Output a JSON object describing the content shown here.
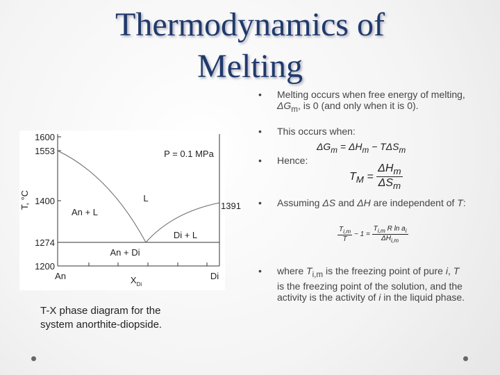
{
  "title": [
    "Thermodynamics of",
    "Melting"
  ],
  "diagram": {
    "y_axis_label": "T, °C",
    "ticks": [
      "1600",
      "1553",
      "1400",
      "1274",
      "1200"
    ],
    "right_label": "1391",
    "pressure": "P = 0.1 MPa",
    "liquid": "L",
    "an_l": "An + L",
    "di_l": "Di + L",
    "an_di": "An + Di",
    "an": "An",
    "x": "X",
    "x_sub": "Di",
    "di": "Di"
  },
  "caption": "T-X phase diagram for the system anorthite-diopside.",
  "bullets": [
    {
      "text": [
        "Melting occurs when free energy of melting, ",
        "ΔG",
        "m",
        ", is 0 (and only when it is 0)."
      ]
    },
    {
      "text": [
        "This occurs when:"
      ],
      "equation": [
        "ΔG",
        "m",
        " = ΔH",
        "m",
        " − TΔS",
        "m"
      ]
    },
    {
      "text": [
        "Hence:"
      ],
      "equation": [
        "T",
        "M",
        "=",
        "ΔH",
        "m",
        "ΔS",
        "m"
      ]
    },
    {
      "text": [
        "Assuming ",
        "ΔS",
        " and ",
        "ΔH",
        " are independent of ",
        "T",
        ":"
      ],
      "equation": [
        "T",
        "i,m",
        "T",
        " − 1 = ",
        "T",
        "i,m",
        "R ln a",
        "i",
        "ΔH",
        "i,m"
      ]
    },
    {
      "text": [
        "where ",
        "T",
        "i,m",
        " is the freezing point of pure ",
        "i",
        ", ",
        "T",
        " is the freezing point of the solution, and the activity is the activity of ",
        "i",
        " in the liquid phase."
      ]
    }
  ]
}
